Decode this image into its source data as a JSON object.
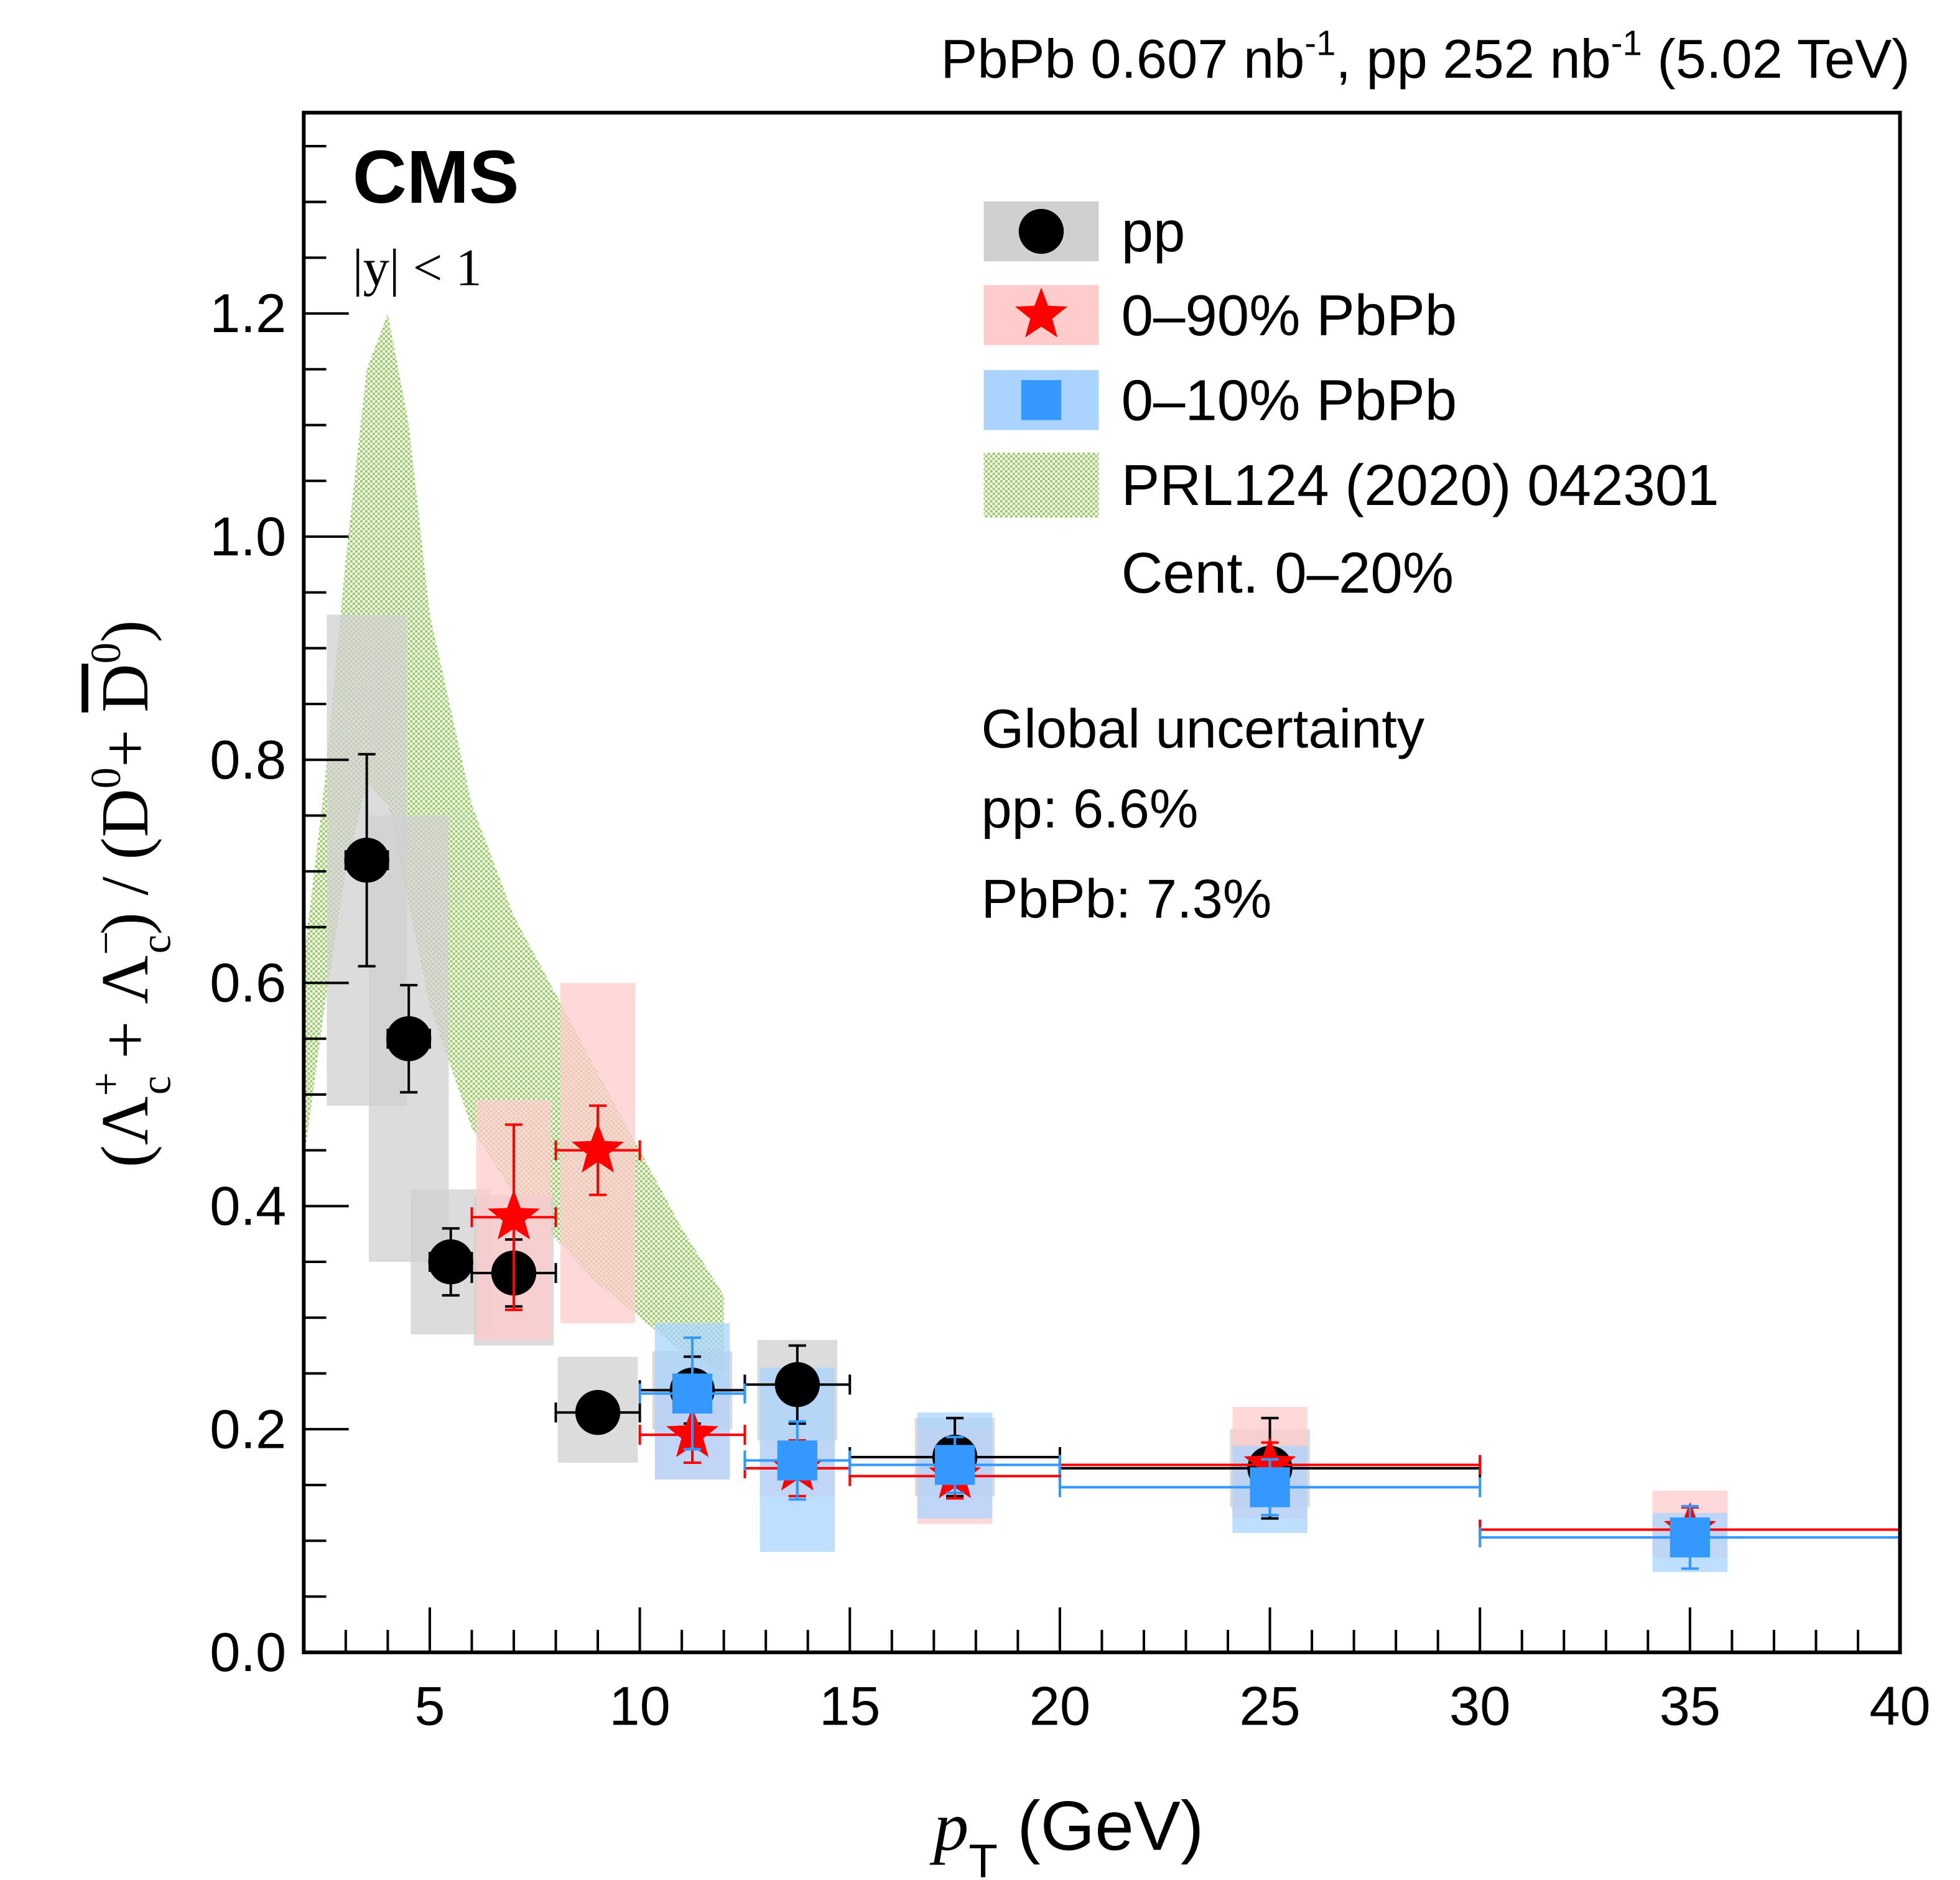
{
  "header": {
    "lumi_text": "PbPb 0.607 nb",
    "lumi_sup1": "-1",
    "lumi_mid": ", pp 252 nb",
    "lumi_sup2": "-1",
    "lumi_end": " (5.02 TeV)"
  },
  "labels": {
    "experiment": "CMS",
    "rapidity": "|y| < 1",
    "global_title": "Global uncertainty",
    "global_pp": "pp: 6.6%",
    "global_pbpb": "PbPb: 7.3%"
  },
  "legend": [
    {
      "key": "pp",
      "label": "pp",
      "color": "#000000",
      "box": "#d0d0d0"
    },
    {
      "key": "pbpb090",
      "label": "0–90% PbPb",
      "color": "#ff0000",
      "box": "#ffcccc"
    },
    {
      "key": "pbpb010",
      "label": "0–10% PbPb",
      "color": "#3399ff",
      "box": "#aad4ff"
    },
    {
      "key": "model",
      "label": "PRL124 (2020) 042301",
      "label2": "Cent. 0–20%",
      "color": "#99cc66"
    }
  ],
  "chart_data": {
    "type": "scatter",
    "title": "",
    "xlabel": "p_T (GeV)",
    "ylabel": "(Λc+ + Λc−) / (D0 + D0bar)",
    "xlim": [
      2,
      40
    ],
    "ylim": [
      0,
      1.38
    ],
    "xticks": [
      5,
      10,
      15,
      20,
      25,
      30,
      35,
      40
    ],
    "yticks": [
      0.0,
      0.2,
      0.4,
      0.6,
      0.8,
      1.0,
      1.2
    ],
    "series": [
      {
        "name": "pp",
        "marker": "circle",
        "color": "#000000",
        "syst_color": "#d0d0d0",
        "points": [
          {
            "x": 3.5,
            "xlo": 3,
            "xhi": 4,
            "y": 0.71,
            "stat": 0.095,
            "syst_lo": 0.49,
            "syst_hi": 0.93
          },
          {
            "x": 4.5,
            "xlo": 4,
            "xhi": 5,
            "y": 0.55,
            "stat": 0.048,
            "syst_lo": 0.35,
            "syst_hi": 0.75
          },
          {
            "x": 5.5,
            "xlo": 5,
            "xhi": 6,
            "y": 0.35,
            "stat": 0.03,
            "syst_lo": 0.285,
            "syst_hi": 0.415
          },
          {
            "x": 7,
            "xlo": 6,
            "xhi": 8,
            "y": 0.34,
            "stat": 0.03,
            "syst_lo": 0.275,
            "syst_hi": 0.41
          },
          {
            "x": 9,
            "xlo": 8,
            "xhi": 10,
            "y": 0.215,
            "stat": 0.0,
            "syst_lo": 0.17,
            "syst_hi": 0.265
          },
          {
            "x": 11.25,
            "xlo": 10,
            "xhi": 12.5,
            "y": 0.235,
            "stat": 0.03,
            "syst_lo": 0.2,
            "syst_hi": 0.27
          },
          {
            "x": 13.75,
            "xlo": 12.5,
            "xhi": 15,
            "y": 0.24,
            "stat": 0.035,
            "syst_lo": 0.19,
            "syst_hi": 0.28
          },
          {
            "x": 17.5,
            "xlo": 15,
            "xhi": 20,
            "y": 0.175,
            "stat": 0.035,
            "syst_lo": 0.14,
            "syst_hi": 0.21
          },
          {
            "x": 25,
            "xlo": 20,
            "xhi": 30,
            "y": 0.165,
            "stat": 0.045,
            "syst_lo": 0.13,
            "syst_hi": 0.2
          }
        ]
      },
      {
        "name": "0-90% PbPb",
        "marker": "star",
        "color": "#ff0000",
        "syst_color": "#ffcccc",
        "points": [
          {
            "x": 7,
            "xlo": 6,
            "xhi": 8,
            "y": 0.39,
            "stat": 0.083,
            "syst_lo": 0.28,
            "syst_hi": 0.495
          },
          {
            "x": 9,
            "xlo": 8,
            "xhi": 10,
            "y": 0.45,
            "stat": 0.04,
            "syst_lo": 0.295,
            "syst_hi": 0.6
          },
          {
            "x": 11.25,
            "xlo": 10,
            "xhi": 12.5,
            "y": 0.195,
            "stat": 0.025,
            "syst_lo": 0.155,
            "syst_hi": 0.235
          },
          {
            "x": 13.75,
            "xlo": 12.5,
            "xhi": 15,
            "y": 0.165,
            "stat": 0.025,
            "syst_lo": 0.14,
            "syst_hi": 0.19
          },
          {
            "x": 17.5,
            "xlo": 15,
            "xhi": 20,
            "y": 0.158,
            "stat": 0.02,
            "syst_lo": 0.115,
            "syst_hi": 0.2
          },
          {
            "x": 25,
            "xlo": 20,
            "xhi": 30,
            "y": 0.168,
            "stat": 0.02,
            "syst_lo": 0.12,
            "syst_hi": 0.22
          },
          {
            "x": 35,
            "xlo": 30,
            "xhi": 40,
            "y": 0.11,
            "stat": 0.02,
            "syst_lo": 0.085,
            "syst_hi": 0.145
          }
        ]
      },
      {
        "name": "0-10% PbPb",
        "marker": "square",
        "color": "#3399ff",
        "syst_color": "#aad4ff",
        "points": [
          {
            "x": 11.25,
            "xlo": 10,
            "xhi": 12.5,
            "y": 0.232,
            "stat": 0.05,
            "syst_lo": 0.155,
            "syst_hi": 0.295
          },
          {
            "x": 13.75,
            "xlo": 12.5,
            "xhi": 15,
            "y": 0.172,
            "stat": 0.035,
            "syst_lo": 0.09,
            "syst_hi": 0.255
          },
          {
            "x": 17.5,
            "xlo": 15,
            "xhi": 20,
            "y": 0.168,
            "stat": 0.025,
            "syst_lo": 0.12,
            "syst_hi": 0.215
          },
          {
            "x": 25,
            "xlo": 20,
            "xhi": 30,
            "y": 0.148,
            "stat": 0.025,
            "syst_lo": 0.107,
            "syst_hi": 0.185
          },
          {
            "x": 35,
            "xlo": 30,
            "xhi": 40,
            "y": 0.103,
            "stat": 0.028,
            "syst_lo": 0.072,
            "syst_hi": 0.125
          }
        ]
      }
    ],
    "model_band": {
      "name": "PRL124 (2020) 042301 Cent. 0-20%",
      "x": [
        2,
        2.5,
        3,
        3.5,
        4,
        4.5,
        5,
        6,
        7,
        8,
        9,
        10,
        11,
        12
      ],
      "hi": [
        0.62,
        0.78,
        0.98,
        1.15,
        1.2,
        1.1,
        0.93,
        0.76,
        0.66,
        0.59,
        0.52,
        0.45,
        0.38,
        0.32
      ],
      "lo": [
        0.44,
        0.58,
        0.7,
        0.78,
        0.76,
        0.67,
        0.58,
        0.47,
        0.41,
        0.37,
        0.33,
        0.3,
        0.27,
        0.25
      ]
    }
  }
}
